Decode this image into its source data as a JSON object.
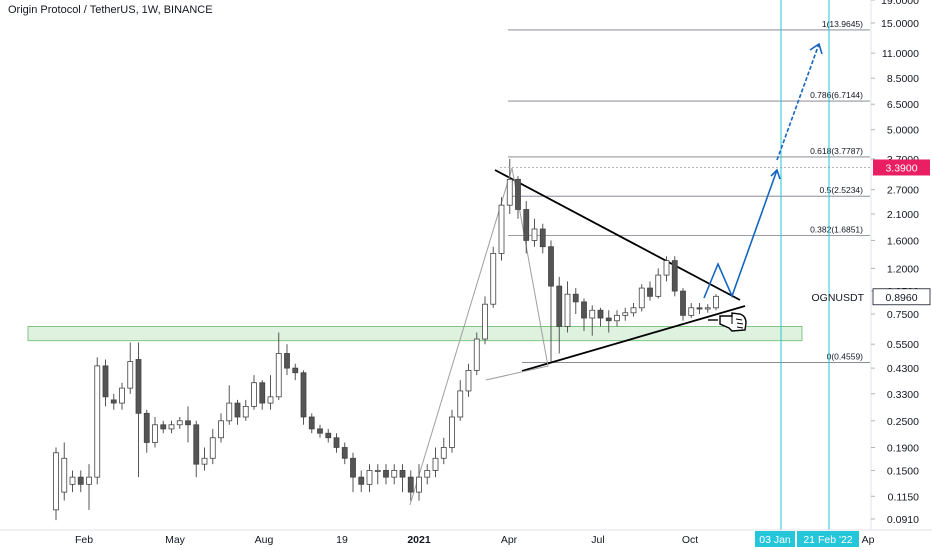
{
  "header": {
    "title": "Origin Protocol / TetherUS, 1W, BINANCE"
  },
  "chart_data": {
    "type": "candlestick",
    "symbol": "OGNUSDT",
    "scale": "log",
    "grid": false,
    "y_ticks": [
      19.0,
      15.0,
      11.0,
      8.5,
      6.5,
      5.0,
      3.7,
      2.7,
      2.1,
      1.6,
      1.2,
      0.95,
      0.75,
      0.55,
      0.43,
      0.33,
      0.25,
      0.19,
      0.15,
      0.115,
      0.091
    ],
    "y_tick_labels": [
      "19.0000",
      "15.0000",
      "11.0000",
      "8.5000",
      "6.5000",
      "5.0000",
      "3.7000",
      "2.7000",
      "2.1000",
      "1.6000",
      "1.2000",
      "0.9500",
      "0.7500",
      "0.5500",
      "0.4300",
      "0.3300",
      "0.2500",
      "0.1900",
      "0.1500",
      "0.1150",
      "0.0910"
    ],
    "x_labels": [
      "Feb",
      "May",
      "Aug",
      "19",
      "2021",
      "Apr",
      "Jul",
      "Oct",
      "03 Jan",
      "21 Feb '22",
      "Ap"
    ],
    "current_price": {
      "label": "OGNUSDT",
      "value": "0.8960",
      "price": 0.896
    },
    "target_price": {
      "value": "3.3900",
      "price": 3.39
    },
    "fibonacci": [
      {
        "label": "1(13.9645)",
        "price": 13.9645
      },
      {
        "label": "0.786(6.7144)",
        "price": 6.7144
      },
      {
        "label": "0.618(3.7787)",
        "price": 3.7787
      },
      {
        "label": "0.5(2.5234)",
        "price": 2.5234
      },
      {
        "label": "0.382(1.6851)",
        "price": 1.6851
      },
      {
        "label": "0(0.4559)",
        "price": 0.4559
      }
    ],
    "support_zone": {
      "from_price": 0.57,
      "to_price": 0.66
    },
    "candles": [
      [
        0.1,
        0.18,
        0.09,
        0.19
      ],
      [
        0.12,
        0.17,
        0.11,
        0.2
      ],
      [
        0.13,
        0.14,
        0.12,
        0.15
      ],
      [
        0.14,
        0.13,
        0.12,
        0.15
      ],
      [
        0.13,
        0.14,
        0.1,
        0.16
      ],
      [
        0.14,
        0.44,
        0.13,
        0.48
      ],
      [
        0.44,
        0.32,
        0.29,
        0.47
      ],
      [
        0.31,
        0.3,
        0.28,
        0.33
      ],
      [
        0.3,
        0.35,
        0.28,
        0.37
      ],
      [
        0.35,
        0.46,
        0.33,
        0.56
      ],
      [
        0.47,
        0.27,
        0.14,
        0.56
      ],
      [
        0.27,
        0.2,
        0.18,
        0.28
      ],
      [
        0.2,
        0.24,
        0.19,
        0.26
      ],
      [
        0.24,
        0.23,
        0.22,
        0.25
      ],
      [
        0.23,
        0.24,
        0.22,
        0.25
      ],
      [
        0.24,
        0.25,
        0.23,
        0.26
      ],
      [
        0.25,
        0.24,
        0.2,
        0.29
      ],
      [
        0.24,
        0.16,
        0.14,
        0.25
      ],
      [
        0.16,
        0.17,
        0.15,
        0.19
      ],
      [
        0.17,
        0.21,
        0.16,
        0.23
      ],
      [
        0.21,
        0.25,
        0.2,
        0.27
      ],
      [
        0.25,
        0.3,
        0.24,
        0.36
      ],
      [
        0.3,
        0.26,
        0.24,
        0.31
      ],
      [
        0.26,
        0.29,
        0.25,
        0.31
      ],
      [
        0.29,
        0.37,
        0.28,
        0.4
      ],
      [
        0.37,
        0.3,
        0.28,
        0.38
      ],
      [
        0.3,
        0.32,
        0.28,
        0.4
      ],
      [
        0.32,
        0.5,
        0.31,
        0.62
      ],
      [
        0.5,
        0.43,
        0.4,
        0.55
      ],
      [
        0.43,
        0.41,
        0.38,
        0.45
      ],
      [
        0.41,
        0.26,
        0.24,
        0.42
      ],
      [
        0.26,
        0.23,
        0.22,
        0.27
      ],
      [
        0.23,
        0.22,
        0.21,
        0.24
      ],
      [
        0.22,
        0.21,
        0.2,
        0.23
      ],
      [
        0.21,
        0.19,
        0.18,
        0.22
      ],
      [
        0.19,
        0.17,
        0.16,
        0.2
      ],
      [
        0.17,
        0.14,
        0.12,
        0.18
      ],
      [
        0.14,
        0.13,
        0.12,
        0.15
      ],
      [
        0.13,
        0.15,
        0.12,
        0.16
      ],
      [
        0.15,
        0.15,
        0.13,
        0.16
      ],
      [
        0.15,
        0.14,
        0.13,
        0.16
      ],
      [
        0.14,
        0.15,
        0.13,
        0.16
      ],
      [
        0.15,
        0.14,
        0.12,
        0.16
      ],
      [
        0.14,
        0.12,
        0.11,
        0.15
      ],
      [
        0.12,
        0.14,
        0.11,
        0.16
      ],
      [
        0.14,
        0.15,
        0.13,
        0.16
      ],
      [
        0.15,
        0.17,
        0.14,
        0.19
      ],
      [
        0.17,
        0.19,
        0.16,
        0.21
      ],
      [
        0.19,
        0.26,
        0.18,
        0.28
      ],
      [
        0.26,
        0.34,
        0.25,
        0.38
      ],
      [
        0.34,
        0.42,
        0.32,
        0.45
      ],
      [
        0.42,
        0.58,
        0.4,
        0.62
      ],
      [
        0.58,
        0.83,
        0.55,
        0.9
      ],
      [
        0.83,
        1.4,
        0.8,
        1.5
      ],
      [
        1.4,
        2.3,
        1.3,
        2.5
      ],
      [
        2.3,
        3.0,
        2.1,
        3.7
      ],
      [
        3.0,
        2.2,
        2.0,
        3.1
      ],
      [
        2.2,
        1.6,
        1.4,
        2.4
      ],
      [
        1.6,
        1.8,
        1.5,
        2.0
      ],
      [
        1.8,
        1.5,
        1.4,
        1.9
      ],
      [
        1.5,
        1.0,
        0.46,
        1.6
      ],
      [
        1.0,
        0.66,
        0.5,
        1.1
      ],
      [
        0.66,
        0.92,
        0.62,
        1.05
      ],
      [
        0.92,
        0.85,
        0.75,
        0.98
      ],
      [
        0.85,
        0.72,
        0.63,
        0.88
      ],
      [
        0.72,
        0.78,
        0.6,
        0.82
      ],
      [
        0.78,
        0.72,
        0.66,
        0.8
      ],
      [
        0.72,
        0.7,
        0.62,
        0.78
      ],
      [
        0.7,
        0.74,
        0.66,
        0.78
      ],
      [
        0.74,
        0.76,
        0.7,
        0.8
      ],
      [
        0.76,
        0.8,
        0.73,
        0.84
      ],
      [
        0.8,
        0.98,
        0.77,
        1.02
      ],
      [
        0.98,
        0.9,
        0.86,
        1.05
      ],
      [
        0.9,
        1.12,
        0.88,
        1.2
      ],
      [
        1.12,
        1.3,
        1.05,
        1.36
      ],
      [
        1.3,
        0.95,
        0.9,
        1.36
      ],
      [
        0.95,
        0.74,
        0.7,
        0.98
      ],
      [
        0.74,
        0.8,
        0.72,
        0.84
      ],
      [
        0.8,
        0.79,
        0.75,
        0.84
      ],
      [
        0.79,
        0.8,
        0.76,
        0.83
      ],
      [
        0.8,
        0.9,
        0.78,
        0.92
      ]
    ]
  }
}
